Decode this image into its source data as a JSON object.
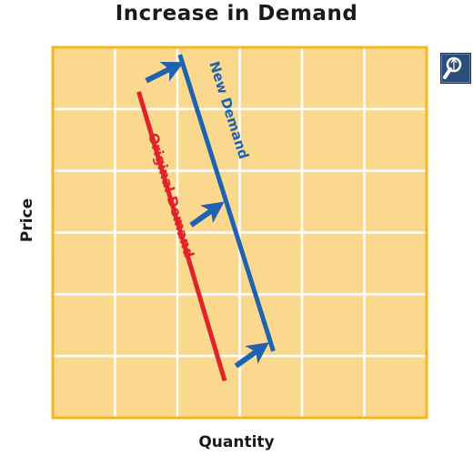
{
  "chart_data": {
    "type": "line",
    "title": "Increase in Demand",
    "xlabel": "Quantity",
    "ylabel": "Price",
    "xlim": [
      0,
      10
    ],
    "ylim": [
      0,
      10
    ],
    "grid": true,
    "legend": "none",
    "series": [
      {
        "name": "Original Demand",
        "color": "#e0232a",
        "points": [
          [
            2.3,
            8.8
          ],
          [
            4.6,
            1.0
          ]
        ],
        "label_position": [
          3.15,
          6.0
        ]
      },
      {
        "name": "New Demand",
        "color": "#1f63b0",
        "points": [
          [
            3.4,
            9.8
          ],
          [
            5.9,
            1.8
          ]
        ],
        "label_position": [
          4.7,
          8.3
        ]
      }
    ],
    "shift_arrows": [
      {
        "from": [
          2.5,
          9.1
        ],
        "to": [
          3.3,
          9.5
        ]
      },
      {
        "from": [
          3.7,
          5.2
        ],
        "to": [
          4.4,
          5.7
        ]
      },
      {
        "from": [
          4.9,
          1.4
        ],
        "to": [
          5.6,
          1.9
        ]
      }
    ],
    "colors": {
      "plot_background": "#fad98f",
      "plot_border": "#f5b81c",
      "grid": "#ffffff",
      "arrows": "#1f63b0"
    }
  },
  "controls": {
    "zoom_icon": "magnifier-icon"
  }
}
